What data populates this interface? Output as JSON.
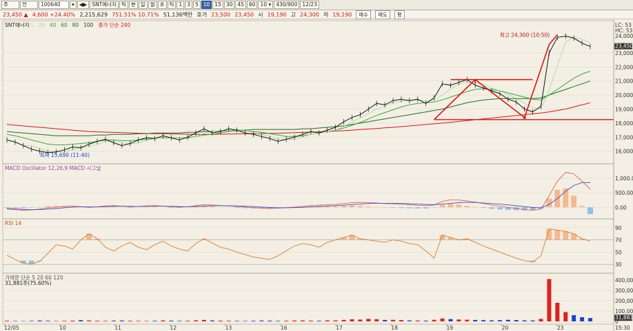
{
  "toolbar": {
    "items": [
      {
        "label": "주",
        "kind": "dd"
      },
      {
        "label": "전",
        "kind": "dd"
      },
      {
        "label": "100640",
        "kind": "inp"
      },
      {
        "label": "▾",
        "kind": "btn"
      },
      {
        "label": "◀▶",
        "kind": "btn"
      },
      {
        "label": "SNT에너지",
        "kind": "btn"
      },
      {
        "label": "틱",
        "kind": "btn"
      },
      {
        "label": "분",
        "kind": "btn"
      },
      {
        "label": "일",
        "kind": "btn"
      },
      {
        "label": "월",
        "kind": "btn"
      },
      {
        "label": "초",
        "kind": "btn"
      },
      {
        "label": "틱",
        "kind": "btn"
      },
      {
        "label": "1",
        "kind": "btn"
      },
      {
        "label": "3",
        "kind": "btn"
      },
      {
        "label": "5",
        "kind": "btn"
      },
      {
        "label": "10",
        "kind": "sel"
      },
      {
        "label": "15",
        "kind": "btn"
      },
      {
        "label": "30",
        "kind": "btn"
      },
      {
        "label": "45",
        "kind": "btn"
      },
      {
        "label": "60",
        "kind": "btn"
      },
      {
        "label": "10 ▾",
        "kind": "btn"
      },
      {
        "label": "430/900",
        "kind": "btn"
      },
      {
        "label": "12/23",
        "kind": "btn"
      }
    ]
  },
  "quote": {
    "price": "23,450 ▲",
    "change": "4,600 +24.40%",
    "volume": "2,215,629",
    "ratio": "751.51% 10.71%",
    "trade_value": "51,136백만",
    "bid_label": "호가",
    "bid": "23,500",
    "ask": "23,450",
    "open_label": "시",
    "open": "19,190",
    "high_label": "고",
    "high": "24,300",
    "low_label": "저",
    "low": "19,190",
    "btn_sell": "매수",
    "btn_buy": "매도",
    "btn_eval": "평"
  },
  "chart_data": [
    {
      "type": "line",
      "panel": "price",
      "title": "SNT에너지",
      "series": [
        {
          "name": "가격",
          "color": "#111111"
        },
        {
          "name": "5",
          "color": "#f0e080"
        },
        {
          "name": "20",
          "color": "#9ae09a"
        },
        {
          "name": "40",
          "color": "#3aa63a"
        },
        {
          "name": "60",
          "color": "#2a7a2a"
        },
        {
          "name": "80",
          "color": "#1f6e1f"
        },
        {
          "name": "100",
          "color": "#0a4a0a"
        },
        {
          "name": "종가 단순 240",
          "color": "#e01010"
        }
      ],
      "legend": [
        "SNT에너지",
        "5",
        "20",
        "40",
        "60",
        "80",
        "100",
        "종가 단순 240"
      ],
      "y_ticks": [
        16000,
        17000,
        18000,
        19000,
        20000,
        21000,
        22000,
        23000
      ],
      "y_tick_labels": [
        "16,000",
        "17,000",
        "18,000",
        "19,000",
        "20,000",
        "21,000",
        "22,000",
        "23,000"
      ],
      "ylim": [
        15300,
        25100
      ],
      "annotations": {
        "high": "최고 24,300 (10:50)",
        "low": "최저 15,690 (11:40)",
        "last": "23,450",
        "hc": "HC: 53",
        "lc": "LC: 53",
        "mid": "24,000"
      },
      "close": [
        16800,
        16650,
        16400,
        16150,
        16000,
        15900,
        15950,
        16100,
        16300,
        16250,
        16500,
        16700,
        16850,
        16600,
        16400,
        16550,
        16800,
        16950,
        16900,
        17100,
        16950,
        16800,
        17000,
        17300,
        17600,
        17300,
        17400,
        17600,
        17500,
        17300,
        17200,
        17050,
        16900,
        16700,
        16850,
        17000,
        17200,
        17400,
        17300,
        17500,
        17700,
        18100,
        18400,
        18600,
        19000,
        19400,
        19300,
        19600,
        19700,
        19600,
        19700,
        19400,
        19800,
        20800,
        20700,
        20900,
        21100,
        20700,
        20500,
        20300,
        20100,
        19700,
        19500,
        19000,
        18800,
        19200,
        23000,
        24100,
        24200,
        24050,
        23700,
        23450
      ],
      "ma_fast": [
        17200,
        17100,
        16950,
        16800,
        16650,
        16500,
        16450,
        16450,
        16500,
        16550,
        16600,
        16700,
        16800,
        16800,
        16750,
        16750,
        16800,
        16850,
        16900,
        16950,
        16950,
        16950,
        16950,
        17050,
        17150,
        17200,
        17300,
        17400,
        17450,
        17450,
        17400,
        17350,
        17250,
        17150,
        17050,
        17050,
        17100,
        17200,
        17300,
        17400,
        17500,
        17650,
        17850,
        18050,
        18300,
        18550,
        18750,
        18950,
        19150,
        19300,
        19400,
        19450,
        19500,
        19650,
        19850,
        20050,
        20250,
        20400,
        20450,
        20400,
        20300,
        20150,
        20000,
        19850,
        19700,
        19650,
        20000,
        20400,
        20800,
        21200,
        21500,
        21700
      ],
      "ma_slow": [
        17400,
        17350,
        17300,
        17250,
        17200,
        17150,
        17100,
        17100,
        17100,
        17100,
        17100,
        17150,
        17150,
        17200,
        17200,
        17200,
        17250,
        17250,
        17300,
        17300,
        17300,
        17300,
        17350,
        17350,
        17400,
        17400,
        17450,
        17450,
        17500,
        17500,
        17550,
        17550,
        17550,
        17550,
        17550,
        17550,
        17600,
        17600,
        17650,
        17700,
        17750,
        17800,
        17900,
        18000,
        18100,
        18200,
        18300,
        18400,
        18500,
        18600,
        18700,
        18800,
        18900,
        19000,
        19150,
        19300,
        19450,
        19550,
        19650,
        19700,
        19750,
        19750,
        19750,
        19750,
        19750,
        19800,
        20000,
        20200,
        20400,
        20600,
        20800,
        21000
      ],
      "ma240": [
        17900,
        17850,
        17800,
        17750,
        17700,
        17650,
        17600,
        17550,
        17500,
        17450,
        17400,
        17380,
        17360,
        17340,
        17320,
        17300,
        17280,
        17260,
        17250,
        17240,
        17230,
        17220,
        17210,
        17200,
        17200,
        17200,
        17210,
        17220,
        17230,
        17240,
        17250,
        17260,
        17270,
        17280,
        17300,
        17320,
        17340,
        17360,
        17380,
        17400,
        17430,
        17460,
        17500,
        17540,
        17580,
        17620,
        17660,
        17700,
        17750,
        17800,
        17850,
        17900,
        17950,
        18000,
        18060,
        18120,
        18180,
        18240,
        18300,
        18360,
        18420,
        18480,
        18540,
        18600,
        18660,
        18720,
        18800,
        18900,
        19000,
        19150,
        19300,
        19450
      ]
    },
    {
      "type": "line",
      "panel": "macd",
      "title": "MACD Oscillator 12,26,9 MACD 시그널",
      "y_ticks": [
        0,
        500,
        1000
      ],
      "y_tick_labels": [
        "0.00",
        "500.00",
        "1,000.00"
      ],
      "ylim": [
        -300,
        1400
      ],
      "macd": [
        -60,
        -80,
        -100,
        -90,
        -60,
        -20,
        10,
        30,
        40,
        20,
        0,
        20,
        50,
        60,
        40,
        20,
        30,
        50,
        60,
        40,
        20,
        10,
        20,
        60,
        90,
        80,
        60,
        50,
        30,
        10,
        -10,
        -30,
        -40,
        -30,
        -10,
        10,
        30,
        60,
        80,
        90,
        100,
        130,
        160,
        170,
        160,
        150,
        130,
        120,
        110,
        90,
        70,
        60,
        80,
        200,
        260,
        250,
        220,
        180,
        130,
        80,
        40,
        0,
        -40,
        -80,
        -100,
        -60,
        400,
        900,
        1200,
        1150,
        900,
        620
      ],
      "signal": [
        -40,
        -55,
        -70,
        -80,
        -75,
        -60,
        -40,
        -15,
        10,
        20,
        15,
        15,
        25,
        35,
        38,
        35,
        30,
        35,
        40,
        40,
        35,
        25,
        20,
        30,
        45,
        55,
        58,
        55,
        48,
        38,
        25,
        10,
        -5,
        -15,
        -15,
        -10,
        0,
        15,
        30,
        45,
        60,
        75,
        95,
        115,
        130,
        140,
        140,
        138,
        132,
        122,
        110,
        98,
        90,
        110,
        140,
        160,
        170,
        165,
        150,
        130,
        110,
        85,
        55,
        25,
        -5,
        -15,
        100,
        300,
        550,
        750,
        850,
        850
      ]
    },
    {
      "type": "line",
      "panel": "rsi",
      "title": "RSI 14",
      "y_ticks": [
        30,
        50,
        70,
        90
      ],
      "y_tick_labels": [
        "30",
        "50",
        "70",
        "90"
      ],
      "ylim": [
        20,
        100
      ],
      "values": [
        45,
        38,
        32,
        30,
        35,
        48,
        62,
        60,
        55,
        70,
        80,
        72,
        58,
        52,
        60,
        66,
        58,
        54,
        62,
        68,
        60,
        55,
        52,
        64,
        72,
        65,
        58,
        55,
        50,
        46,
        42,
        40,
        38,
        44,
        52,
        60,
        64,
        62,
        58,
        66,
        70,
        74,
        78,
        72,
        70,
        68,
        66,
        70,
        68,
        64,
        62,
        52,
        40,
        78,
        74,
        70,
        72,
        66,
        60,
        55,
        50,
        45,
        40,
        36,
        34,
        44,
        88,
        86,
        84,
        80,
        72,
        68
      ]
    },
    {
      "type": "bar",
      "panel": "volume",
      "title": "거래량 단순 5 20 60 120",
      "readout": "31,881주(75.60%)",
      "y_ticks": [
        0,
        100000,
        200000,
        300000,
        400000
      ],
      "y_tick_labels": [
        "0",
        "100,00",
        "200,00",
        "300,00",
        "400,00"
      ],
      "ylim": [
        0,
        440000
      ],
      "last_label": "31,881",
      "values": [
        6000,
        4000,
        3000,
        5000,
        8000,
        6000,
        4000,
        5000,
        7000,
        12000,
        9000,
        6000,
        5000,
        7000,
        8000,
        6000,
        5000,
        4000,
        6000,
        9000,
        7000,
        5000,
        6000,
        10000,
        14000,
        9000,
        7000,
        6000,
        5000,
        4000,
        6000,
        8000,
        7000,
        5000,
        6000,
        8000,
        9000,
        7000,
        6000,
        10000,
        9000,
        14000,
        20000,
        17000,
        24000,
        21000,
        14000,
        15000,
        13000,
        9000,
        8000,
        7000,
        15000,
        28000,
        22000,
        18000,
        16000,
        14000,
        12000,
        10000,
        12000,
        15000,
        13000,
        10000,
        9000,
        24000,
        410000,
        180000,
        90000,
        60000,
        40000,
        32000
      ]
    }
  ],
  "x_labels": [
    "12/05",
    "10",
    "11",
    "12",
    "13",
    "16",
    "17",
    "18",
    "19",
    "20",
    "23",
    "15:30"
  ]
}
